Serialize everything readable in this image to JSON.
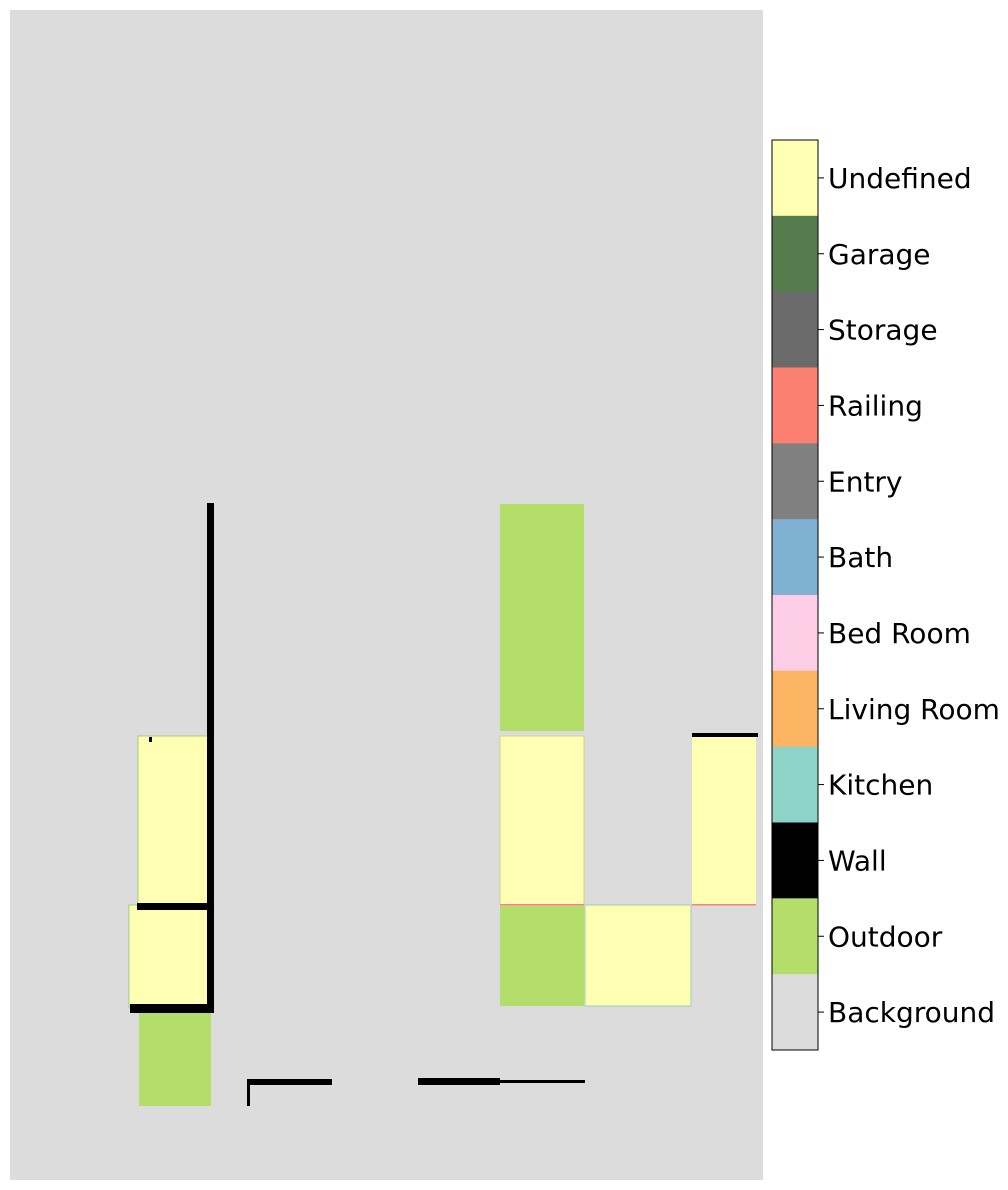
{
  "floorplan": {
    "background_color": "#dcdcdc",
    "regions": [
      {
        "class": "Wall"
      },
      {
        "class": "Outdoor"
      },
      {
        "class": "Undefined"
      },
      {
        "class": "Railing"
      }
    ]
  },
  "legend": {
    "items": [
      {
        "label": "Undefined",
        "color": "#ffffb3"
      },
      {
        "label": "Garage",
        "color": "#567c4e"
      },
      {
        "label": "Storage",
        "color": "#6b6b6b"
      },
      {
        "label": "Railing",
        "color": "#fb8072"
      },
      {
        "label": "Entry",
        "color": "#808080"
      },
      {
        "label": "Bath",
        "color": "#80b1d3"
      },
      {
        "label": "Bed Room",
        "color": "#fccde5"
      },
      {
        "label": "Living Room",
        "color": "#fdb462"
      },
      {
        "label": "Kitchen",
        "color": "#8dd3c7"
      },
      {
        "label": "Wall",
        "color": "#000000"
      },
      {
        "label": "Outdoor",
        "color": "#b3de69"
      },
      {
        "label": "Background",
        "color": "#dcdcdc"
      }
    ]
  }
}
